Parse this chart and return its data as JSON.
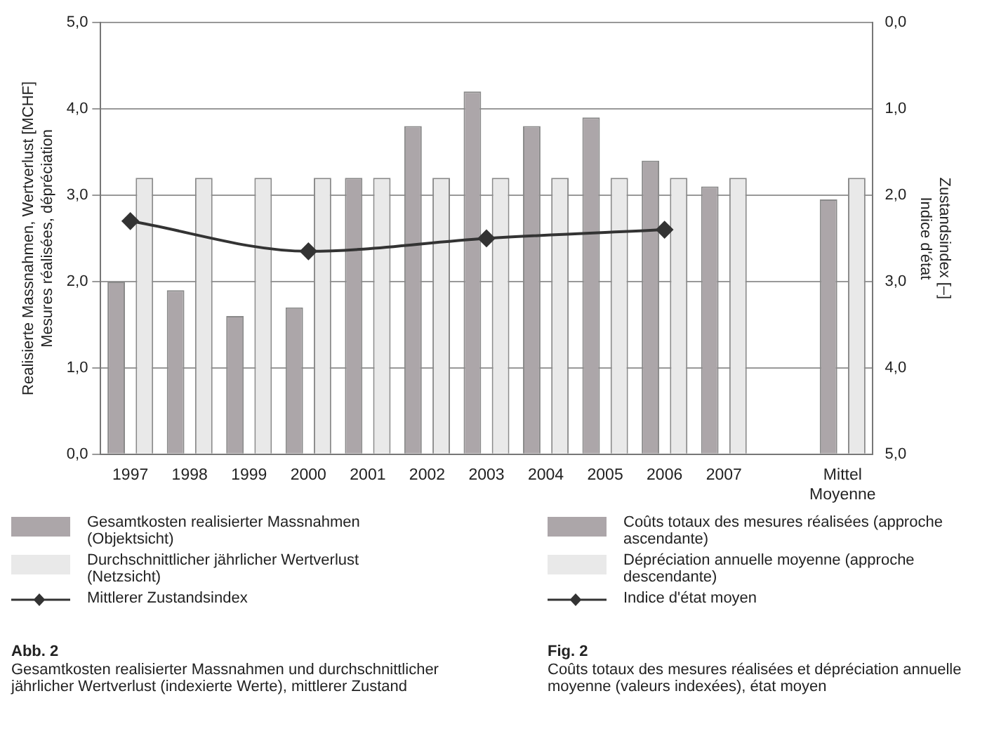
{
  "chart_data": {
    "type": "bar",
    "categories": [
      "1997",
      "1998",
      "1999",
      "2000",
      "2001",
      "2002",
      "2003",
      "2004",
      "2005",
      "2006",
      "2007",
      null,
      "Mittel\nMoyenne"
    ],
    "series": [
      {
        "name": "Gesamtkosten realisierter Massnahmen (Objektsicht)",
        "color": "#aca6a9",
        "values": [
          2.0,
          1.9,
          1.6,
          1.7,
          3.2,
          3.8,
          4.2,
          3.8,
          3.9,
          3.4,
          3.1,
          null,
          2.95
        ]
      },
      {
        "name": "Durchschnittlicher jährlicher Wertverlust (Netzsicht)",
        "color": "#e9e9e9",
        "values": [
          3.2,
          3.2,
          3.2,
          3.2,
          3.2,
          3.2,
          3.2,
          3.2,
          3.2,
          3.2,
          3.2,
          null,
          3.2
        ]
      },
      {
        "name": "Mittlerer Zustandsindex",
        "type": "line",
        "axis": "y2",
        "color": "#333333",
        "marker": "diamond",
        "values": [
          2.3,
          null,
          null,
          2.65,
          null,
          null,
          2.5,
          null,
          null,
          2.4,
          null,
          null,
          null
        ]
      }
    ],
    "ylabel": "Realisierte Massnahmen, Wertverlust [MCHF]\nMesures réalisées, dépréciation",
    "y2label": "Zustandsindex [–]\nIndice d'état",
    "ylim": [
      0,
      5
    ],
    "yticks": [
      {
        "value": 0,
        "label": "0,0"
      },
      {
        "value": 1,
        "label": "1,0"
      },
      {
        "value": 2,
        "label": "2,0"
      },
      {
        "value": 3,
        "label": "3,0"
      },
      {
        "value": 4,
        "label": "4,0"
      },
      {
        "value": 5,
        "label": "5,0"
      }
    ],
    "y2lim": [
      5,
      0
    ],
    "y2ticks": [
      {
        "value": 0,
        "label": "0,0"
      },
      {
        "value": 1,
        "label": "1,0"
      },
      {
        "value": 2,
        "label": "2,0"
      },
      {
        "value": 3,
        "label": "3,0"
      },
      {
        "value": 4,
        "label": "4,0"
      },
      {
        "value": 5,
        "label": "5,0"
      }
    ],
    "grid": "y",
    "legend": "bottom",
    "annotations": [
      "Coûts totaux des mesures réalisées (approche ascendante)",
      "Dépréciation annuelle moyenne (approche descendante)",
      "Indice d'état moyen",
      "Abb. 2\nGesamtkosten realisierter Massnahmen und durchschnittlicher jährlicher Wertverlust (indexierte Werte), mittlerer Zustand",
      "Fig. 2\nCoûts totaux des mesures réalisées et dépréciation annuelle moyenne (valeurs indexées), état moyen"
    ]
  }
}
